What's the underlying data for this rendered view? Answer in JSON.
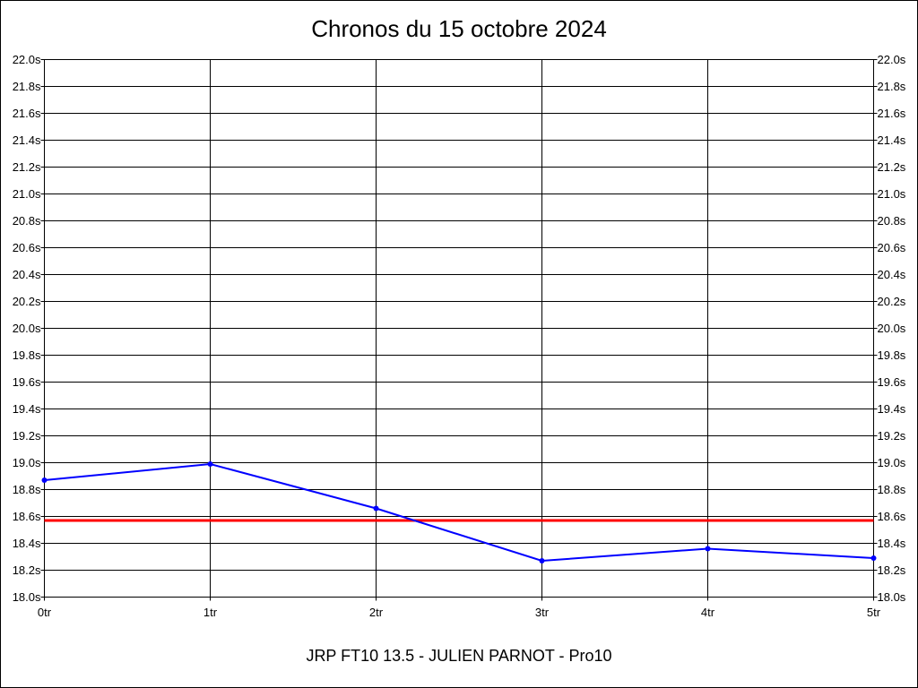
{
  "chart_data": {
    "type": "line",
    "title": "Chronos du 15 octobre 2024",
    "subtitle": "JRP FT10 13.5 - JULIEN PARNOT - Pro10",
    "x": [
      0,
      1,
      2,
      3,
      4,
      5
    ],
    "xlim": [
      0,
      5
    ],
    "xticks": [
      {
        "value": 0,
        "label": "0tr"
      },
      {
        "value": 1,
        "label": "1tr"
      },
      {
        "value": 2,
        "label": "2tr"
      },
      {
        "value": 3,
        "label": "3tr"
      },
      {
        "value": 4,
        "label": "4tr"
      },
      {
        "value": 5,
        "label": "5tr"
      }
    ],
    "series": [
      {
        "color": "#0000ff",
        "values": [
          18.87,
          18.99,
          18.66,
          18.27,
          18.36,
          18.29
        ]
      }
    ],
    "reference_line": {
      "value": 18.57,
      "color": "#ff0000"
    },
    "ylim": [
      18,
      22
    ],
    "yticks": [
      {
        "value": 18,
        "label": "18.0s"
      },
      {
        "value": 18.2,
        "label": "18.2s"
      },
      {
        "value": 18.4,
        "label": "18.4s"
      },
      {
        "value": 18.6,
        "label": "18.6s"
      },
      {
        "value": 18.8,
        "label": "18.8s"
      },
      {
        "value": 19,
        "label": "19.0s"
      },
      {
        "value": 19.2,
        "label": "19.2s"
      },
      {
        "value": 19.4,
        "label": "19.4s"
      },
      {
        "value": 19.6,
        "label": "19.6s"
      },
      {
        "value": 19.8,
        "label": "19.8s"
      },
      {
        "value": 20,
        "label": "20.0s"
      },
      {
        "value": 20.2,
        "label": "20.2s"
      },
      {
        "value": 20.4,
        "label": "20.4s"
      },
      {
        "value": 20.6,
        "label": "20.6s"
      },
      {
        "value": 20.8,
        "label": "20.8s"
      },
      {
        "value": 21,
        "label": "21.0s"
      },
      {
        "value": 21.2,
        "label": "21.2s"
      },
      {
        "value": 21.4,
        "label": "21.4s"
      },
      {
        "value": 21.6,
        "label": "21.6s"
      },
      {
        "value": 21.8,
        "label": "21.8s"
      },
      {
        "value": 22,
        "label": "22.0s"
      }
    ],
    "grid": true
  }
}
